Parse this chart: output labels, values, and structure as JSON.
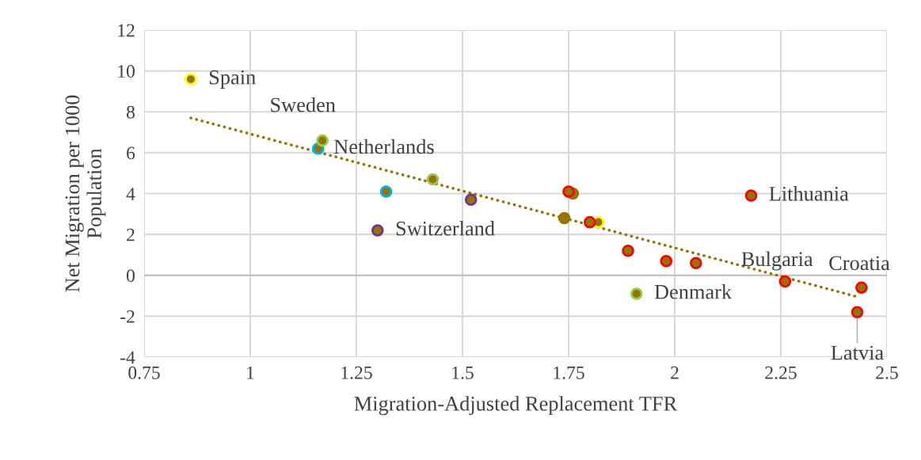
{
  "chart_data": {
    "type": "scatter",
    "xlabel": "Migration-Adjusted Replacement TFR",
    "ylabel": "Net Migration per 1000\nPopulation",
    "xlim": [
      0.75,
      2.5
    ],
    "xticks": [
      0.75,
      1,
      1.25,
      1.5,
      1.75,
      2,
      2.25,
      2.5
    ],
    "ylim": [
      -4,
      12
    ],
    "yticks": [
      -4,
      -2,
      0,
      2,
      4,
      6,
      8,
      10,
      12
    ],
    "grid": true,
    "marker": "circle",
    "series": [
      {
        "color": "#997300",
        "x": [
          0.86,
          1.17,
          1.16,
          1.43,
          1.32,
          1.52,
          1.3,
          1.75,
          1.76,
          1.74,
          1.8,
          1.82,
          1.89,
          1.98,
          2.05,
          2.18,
          1.91,
          2.26,
          2.44,
          2.43
        ],
        "values": [
          9.6,
          6.6,
          6.2,
          4.7,
          4.1,
          3.7,
          2.2,
          4.1,
          4.0,
          2.8,
          2.6,
          2.6,
          1.2,
          0.7,
          0.6,
          3.9,
          -0.9,
          -0.3,
          -0.6,
          -1.8
        ],
        "colors": [
          "#ffff00",
          "#92d050",
          "#00b0f0",
          "#92d050",
          "#00b0f0",
          "#7030a0",
          "#7030a0",
          "#ff0000",
          "#997300",
          "#997300",
          "#ff0000",
          "#ffff00",
          "#ff0000",
          "#ff0000",
          "#ff0000",
          "#ff0000",
          "#92d050",
          "#ff0000",
          "#ff0000",
          "#ff0000"
        ]
      },
      {
        "type": "line",
        "color": "#997300",
        "line_style": "dotted",
        "marker": "none",
        "x": [
          0.86,
          2.43
        ],
        "values": [
          7.7,
          -1.05
        ]
      }
    ],
    "annotations": [
      {
        "text": "Spain",
        "x": 0.86,
        "y": 9.6
      },
      {
        "text": "Sweden",
        "x": 1.17,
        "y": 6.6
      },
      {
        "text": "Netherlands",
        "x": 1.16,
        "y": 6.2
      },
      {
        "text": "Switzerland",
        "x": 1.3,
        "y": 2.2
      },
      {
        "text": "Lithuania",
        "x": 2.18,
        "y": 3.9
      },
      {
        "text": "Denmark",
        "x": 1.91,
        "y": -0.9
      },
      {
        "text": "Bulgaria",
        "x": 2.26,
        "y": -0.3
      },
      {
        "text": "Croatia",
        "x": 2.44,
        "y": -0.6
      },
      {
        "text": "Latvia",
        "x": 2.43,
        "y": -1.8
      }
    ]
  }
}
